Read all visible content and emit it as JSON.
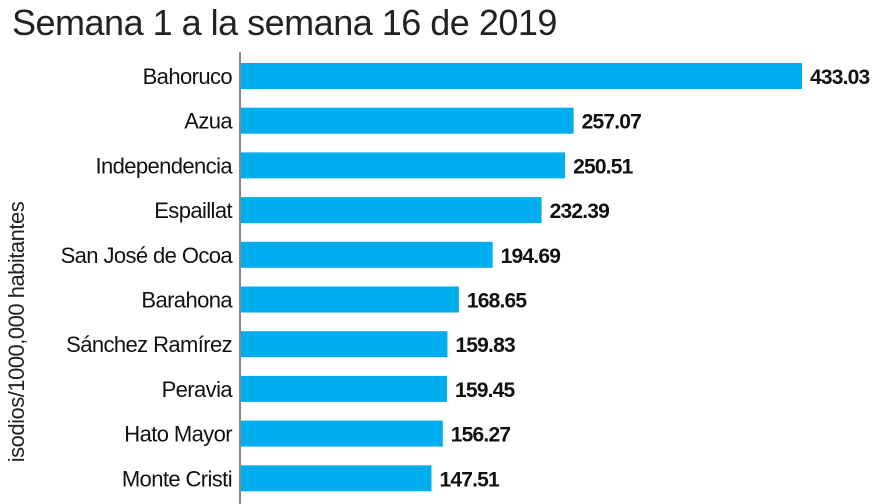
{
  "chart_data": {
    "type": "bar",
    "orientation": "horizontal",
    "title": "Semana 1 a la semana 16 de 2019",
    "ylabel": "isodios/1000,000 habitantes",
    "xlabel": "",
    "categories": [
      "Bahoruco",
      "Azua",
      "Independencia",
      "Espaillat",
      "San José de Ocoa",
      "Barahona",
      "Sánchez Ramírez",
      "Peravia",
      "Hato Mayor",
      "Monte Cristi"
    ],
    "values": [
      433.03,
      257.07,
      250.51,
      232.39,
      194.69,
      168.65,
      159.83,
      159.45,
      156.27,
      147.51
    ],
    "value_labels": [
      "433.03",
      "257.07",
      "250.51",
      "232.39",
      "194.69",
      "168.65",
      "159.83",
      "159.45",
      "156.27",
      "147.51"
    ],
    "xlim": [
      0,
      433.03
    ],
    "grid": false,
    "bar_color": "#00AEEF",
    "axis_color": "#888888"
  }
}
